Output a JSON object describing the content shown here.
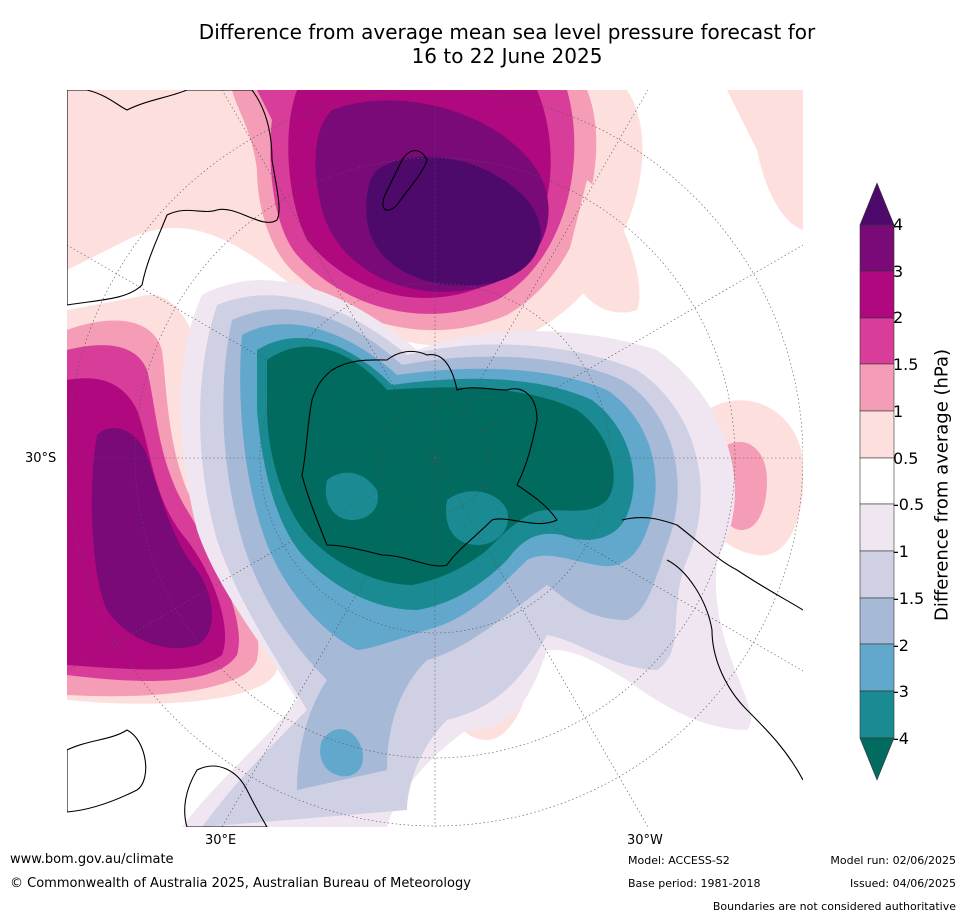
{
  "title_line1": "Difference from average mean sea level pressure forecast for",
  "title_line2": "16 to 22 June 2025",
  "map": {
    "lat_label": "30°S",
    "lon_labels": [
      "30°E",
      "30°W"
    ]
  },
  "colorbar": {
    "title": "Difference from average (hPa)",
    "tick_labels": [
      "4",
      "3",
      "2",
      "1.5",
      "1",
      "0.5",
      "-0.5",
      "-1",
      "-1.5",
      "-2",
      "-3",
      "-4"
    ],
    "colors": {
      "above_4": "#4d0a6b",
      "3_to_4": "#7a0a78",
      "2_to_3": "#b0097f",
      "1.5_to_2": "#d93d9a",
      "1_to_1.5": "#f59db6",
      "0.5_to_1": "#fde0de",
      "-0.5_to_0.5": "#ffffff",
      "-1_to_-0.5": "#efe6f1",
      "-1.5_to_-1": "#cfd0e3",
      "-2_to_-1.5": "#a6b9d7",
      "-3_to_-2": "#62a8cc",
      "-4_to_-3": "#1a8b93",
      "below_-4": "#006b5e"
    }
  },
  "footer": {
    "url": "www.bom.gov.au/climate",
    "copyright": "© Commonwealth of Australia 2025, Australian Bureau of Meteorology",
    "model": "Model: ACCESS-S2",
    "base_period": "Base period: 1981-2018",
    "model_run": "Model run: 02/06/2025",
    "issued": "Issued: 04/06/2025",
    "disclaimer": "Boundaries are not considered authoritative"
  }
}
